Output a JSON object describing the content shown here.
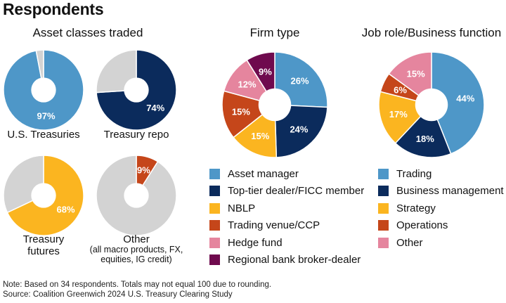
{
  "title": "Respondents",
  "colors": {
    "blue": "#4e97c8",
    "navy": "#0b2b5c",
    "gold": "#fbb520",
    "rust": "#c5461a",
    "pink": "#e5859e",
    "plum": "#6f0a4e",
    "gray": "#d3d3d3"
  },
  "sections": {
    "asset_classes": "Asset classes traded",
    "firm_type": "Firm type",
    "job_role": "Job role/Business function"
  },
  "asset_pies": [
    {
      "label": "U.S. Treasuries",
      "sublabel": "",
      "value_label": "97%"
    },
    {
      "label": "Treasury repo",
      "sublabel": "",
      "value_label": "74%"
    },
    {
      "label": "Treasury\nfutures",
      "sublabel": "",
      "value_label": "68%"
    },
    {
      "label": "Other",
      "sublabel": "(all macro products, FX,\nequities, IG credit)",
      "value_label": "9%"
    }
  ],
  "legends": {
    "firm_type": [
      "Asset manager",
      "Top-tier dealer/FICC member",
      "NBLP",
      "Trading venue/CCP",
      "Hedge fund",
      "Regional bank broker-dealer"
    ],
    "job_role": [
      "Trading",
      "Business management",
      "Strategy",
      "Operations",
      "Other"
    ]
  },
  "notes": {
    "note": "Note: Based on 34 respondents. Totals may not equal 100 due to rounding.",
    "source": "Source: Coalition Greenwich 2024 U.S. Treasury Clearing Study"
  },
  "chart_data": [
    {
      "type": "pie",
      "title": "U.S. Treasuries",
      "categories": [
        "U.S. Treasuries",
        ""
      ],
      "values": [
        97,
        3
      ],
      "labels": [
        "97%",
        ""
      ],
      "colors": [
        "#4e97c8",
        "#d3d3d3"
      ]
    },
    {
      "type": "pie",
      "title": "Treasury repo",
      "categories": [
        "Treasury repo",
        ""
      ],
      "values": [
        74,
        26
      ],
      "labels": [
        "74%",
        ""
      ],
      "colors": [
        "#0b2b5c",
        "#d3d3d3"
      ]
    },
    {
      "type": "pie",
      "title": "Treasury futures",
      "categories": [
        "Treasury futures",
        ""
      ],
      "values": [
        68,
        32
      ],
      "labels": [
        "68%",
        ""
      ],
      "colors": [
        "#fbb520",
        "#d3d3d3"
      ]
    },
    {
      "type": "pie",
      "title": "Other",
      "categories": [
        "Other",
        ""
      ],
      "values": [
        9,
        91
      ],
      "labels": [
        "9%",
        ""
      ],
      "colors": [
        "#c5461a",
        "#d3d3d3"
      ]
    },
    {
      "type": "pie",
      "title": "Firm type",
      "categories": [
        "Asset manager",
        "Top-tier dealer/FICC member",
        "NBLP",
        "Trading venue/CCP",
        "Hedge fund",
        "Regional bank broker-dealer"
      ],
      "values": [
        26,
        24,
        15,
        15,
        12,
        9
      ],
      "labels": [
        "26%",
        "24%",
        "15%",
        "15%",
        "12%",
        "9%"
      ],
      "colors": [
        "#4e97c8",
        "#0b2b5c",
        "#fbb520",
        "#c5461a",
        "#e5859e",
        "#6f0a4e"
      ],
      "legend": "below"
    },
    {
      "type": "pie",
      "title": "Job role/Business function",
      "categories": [
        "Trading",
        "Business management",
        "Strategy",
        "Operations",
        "Other"
      ],
      "values": [
        44,
        18,
        17,
        6,
        15
      ],
      "labels": [
        "44%",
        "18%",
        "17%",
        "6%",
        "15%"
      ],
      "colors": [
        "#4e97c8",
        "#0b2b5c",
        "#fbb520",
        "#c5461a",
        "#e5859e"
      ],
      "legend": "below"
    }
  ]
}
